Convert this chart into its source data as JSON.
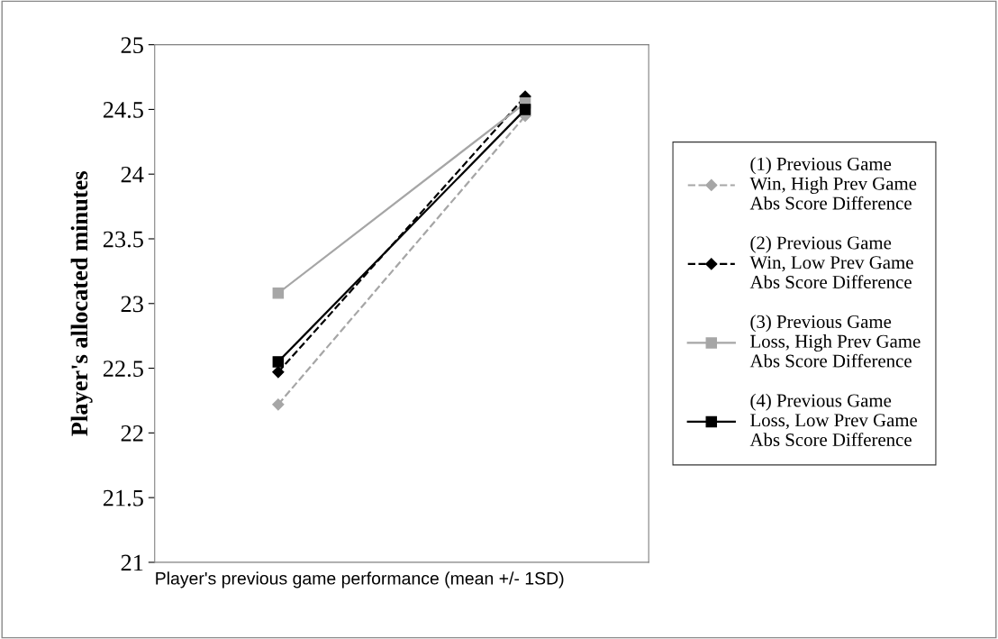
{
  "chart_data": {
    "type": "line",
    "xlabel": "Player's previous game performance (mean +/- 1SD)",
    "ylabel": "Player's allocated minutes",
    "categories": [
      null,
      null
    ],
    "ylim": [
      21,
      25
    ],
    "yticks": [
      21,
      21.5,
      22,
      22.5,
      23,
      23.5,
      24,
      24.5,
      25
    ],
    "grid": false,
    "legend": "right",
    "series": [
      {
        "name": "(1) Previous Game Win, High Prev Game Abs Score Difference",
        "color": "#a6a6a6",
        "values": [
          22.22,
          24.45
        ],
        "marker": "diamond",
        "line_style": "dashed"
      },
      {
        "name": "(2) Previous Game Win, Low Prev Game Abs Score Difference",
        "color": "#000000",
        "values": [
          22.47,
          24.6
        ],
        "marker": "diamond",
        "line_style": "dashed"
      },
      {
        "name": "(3) Previous Game Loss, High Prev Game Abs Score Difference",
        "color": "#a6a6a6",
        "values": [
          23.08,
          24.55
        ],
        "marker": "square",
        "line_style": "solid"
      },
      {
        "name": "(4) Previous Game Loss, Low Prev Game Abs Score Difference",
        "color": "#000000",
        "values": [
          22.55,
          24.5
        ],
        "marker": "square",
        "line_style": "solid"
      }
    ]
  }
}
